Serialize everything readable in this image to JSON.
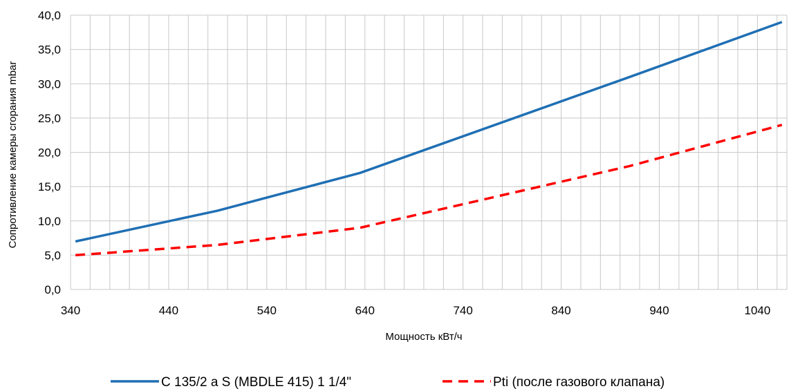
{
  "chart_data": {
    "type": "line",
    "title": "",
    "xlabel": "Мощность кВт/ч",
    "ylabel": "Сопротивление камеры сгорания mbar",
    "xlim": [
      340,
      1070
    ],
    "ylim": [
      0,
      40
    ],
    "x_ticks": [
      340,
      440,
      540,
      640,
      740,
      840,
      940,
      1040
    ],
    "x_tick_labels": [
      "340",
      "440",
      "540",
      "640",
      "740",
      "840",
      "940",
      "1040"
    ],
    "y_ticks": [
      0,
      5,
      10,
      15,
      20,
      25,
      30,
      35,
      40
    ],
    "y_tick_labels": [
      "0,0",
      "5,0",
      "10,0",
      "15,0",
      "20,0",
      "25,0",
      "30,0",
      "35,0",
      "40,0"
    ],
    "minor_x_grid_step": 20,
    "grid": true,
    "legend_position": "bottom",
    "series": [
      {
        "name": "C 135/2 a S (MBDLE 415) 1 1/4\"",
        "color": "#1f6fb4",
        "dash": "solid",
        "x": [
          345,
          490,
          635,
          910,
          1065
        ],
        "y": [
          7.0,
          11.5,
          17.0,
          31.0,
          39.0
        ]
      },
      {
        "name": "Pti (после газового клапана)",
        "color": "#ff0000",
        "dash": "dashed",
        "x": [
          345,
          490,
          635,
          910,
          1065
        ],
        "y": [
          5.0,
          6.5,
          9.0,
          18.0,
          24.0
        ]
      }
    ]
  }
}
